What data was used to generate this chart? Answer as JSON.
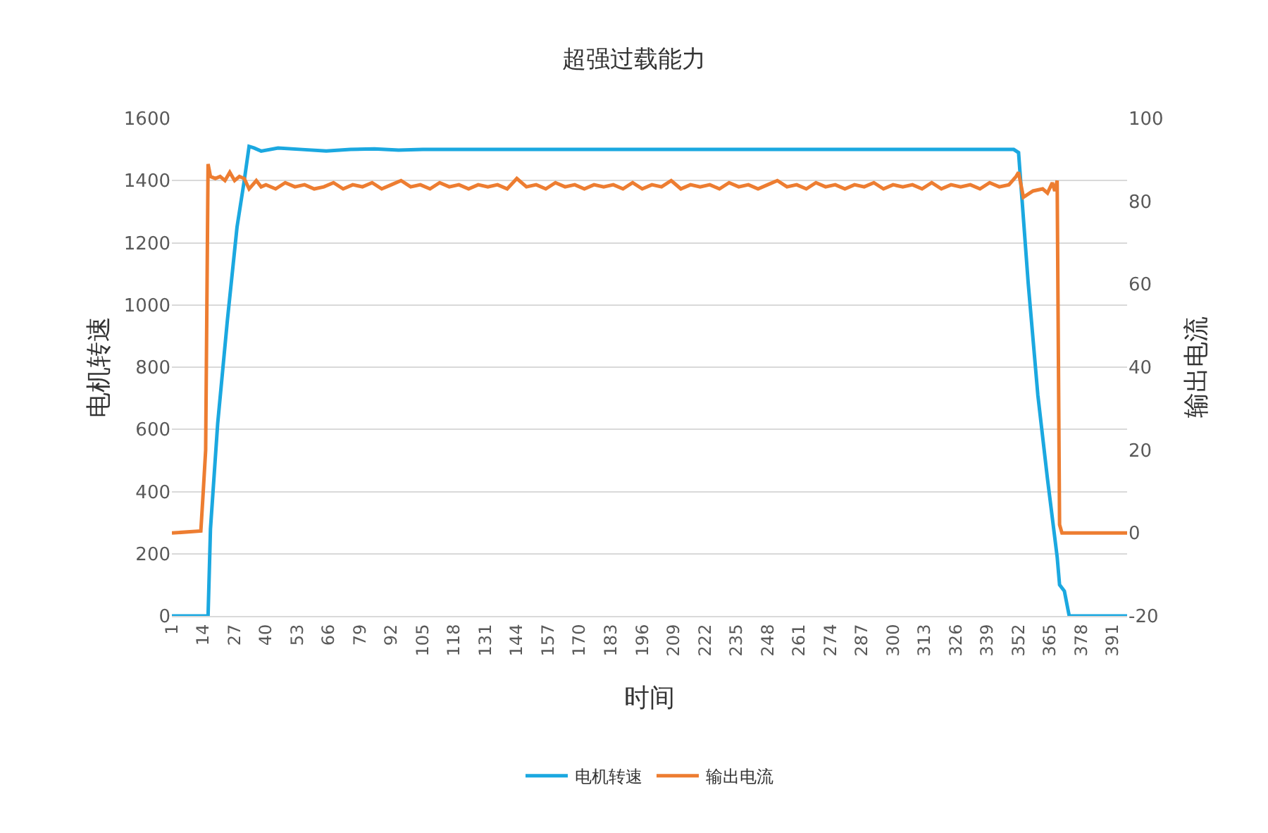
{
  "chart_data": {
    "type": "line",
    "title": "超强过载能力",
    "xlabel": "时间",
    "ylabel": "电机转速",
    "y2label": "输出电流",
    "xlim": [
      1,
      397
    ],
    "xticks": [
      1,
      14,
      27,
      40,
      53,
      66,
      79,
      92,
      105,
      118,
      131,
      144,
      157,
      170,
      183,
      196,
      209,
      222,
      235,
      248,
      261,
      274,
      287,
      300,
      313,
      326,
      339,
      352,
      365,
      378,
      391
    ],
    "ylim": [
      0,
      1600
    ],
    "yticks": [
      0,
      200,
      400,
      600,
      800,
      1000,
      1200,
      1400,
      1600
    ],
    "y2lim": [
      -20,
      100
    ],
    "y2ticks": [
      -20,
      0,
      20,
      40,
      60,
      80,
      100
    ],
    "grid": "y",
    "legend": "bottom",
    "marker": "none",
    "line_style": "solid",
    "series": [
      {
        "name": "电机转速",
        "color": "#1ba8e0",
        "x": [
          1,
          16,
          17,
          20,
          24,
          28,
          31,
          33,
          35,
          38,
          45,
          55,
          65,
          75,
          85,
          95,
          105,
          115,
          125,
          135,
          145,
          155,
          165,
          175,
          185,
          195,
          205,
          215,
          225,
          235,
          245,
          255,
          265,
          275,
          285,
          295,
          305,
          315,
          325,
          335,
          345,
          350,
          352,
          356,
          360,
          364,
          368,
          369,
          371,
          373,
          380,
          397
        ],
        "values": [
          0,
          0,
          280,
          620,
          950,
          1250,
          1400,
          1510,
          1505,
          1495,
          1505,
          1500,
          1495,
          1500,
          1502,
          1498,
          1500,
          1500,
          1500,
          1500,
          1500,
          1500,
          1500,
          1500,
          1500,
          1500,
          1500,
          1500,
          1500,
          1500,
          1500,
          1500,
          1500,
          1500,
          1500,
          1500,
          1500,
          1500,
          1500,
          1500,
          1500,
          1500,
          1490,
          1070,
          710,
          440,
          190,
          100,
          80,
          0,
          0,
          0
        ]
      },
      {
        "name": "输出电流",
        "color": "#ed7d31",
        "axis": "y2",
        "x": [
          1,
          13,
          14,
          15,
          16,
          17,
          19,
          21,
          23,
          25,
          27,
          29,
          31,
          33,
          36,
          38,
          40,
          44,
          48,
          52,
          56,
          60,
          64,
          68,
          72,
          76,
          80,
          84,
          88,
          92,
          96,
          100,
          104,
          108,
          112,
          116,
          120,
          124,
          128,
          132,
          136,
          140,
          144,
          148,
          152,
          156,
          160,
          164,
          168,
          172,
          176,
          180,
          184,
          188,
          192,
          196,
          200,
          204,
          208,
          212,
          216,
          220,
          224,
          228,
          232,
          236,
          240,
          244,
          248,
          252,
          256,
          260,
          264,
          268,
          272,
          276,
          280,
          284,
          288,
          292,
          296,
          300,
          304,
          308,
          312,
          316,
          320,
          324,
          328,
          332,
          336,
          340,
          344,
          348,
          351,
          352,
          354,
          358,
          362,
          364,
          366,
          367,
          368,
          369,
          370,
          397
        ],
        "values": [
          0,
          0.5,
          10,
          20,
          89,
          86,
          85.5,
          86,
          85,
          87,
          85,
          86,
          85.5,
          83,
          85,
          83.5,
          84,
          83,
          84.5,
          83.5,
          84,
          83,
          83.5,
          84.5,
          83,
          84,
          83.5,
          84.5,
          83,
          84,
          85,
          83.5,
          84,
          83,
          84.5,
          83.5,
          84,
          83,
          84,
          83.5,
          84,
          83,
          85.5,
          83.5,
          84,
          83,
          84.5,
          83.5,
          84,
          83,
          84,
          83.5,
          84,
          83,
          84.5,
          83,
          84,
          83.5,
          85,
          83,
          84,
          83.5,
          84,
          83,
          84.5,
          83.5,
          84,
          83,
          84,
          85,
          83.5,
          84,
          83,
          84.5,
          83.5,
          84,
          83,
          84,
          83.5,
          84.5,
          83,
          84,
          83.5,
          84,
          83,
          84.5,
          83,
          84,
          83.5,
          84,
          83,
          84.5,
          83.5,
          84,
          86,
          87,
          81,
          82.5,
          83,
          82,
          84.5,
          82.5,
          85,
          2,
          0,
          0
        ]
      }
    ]
  }
}
